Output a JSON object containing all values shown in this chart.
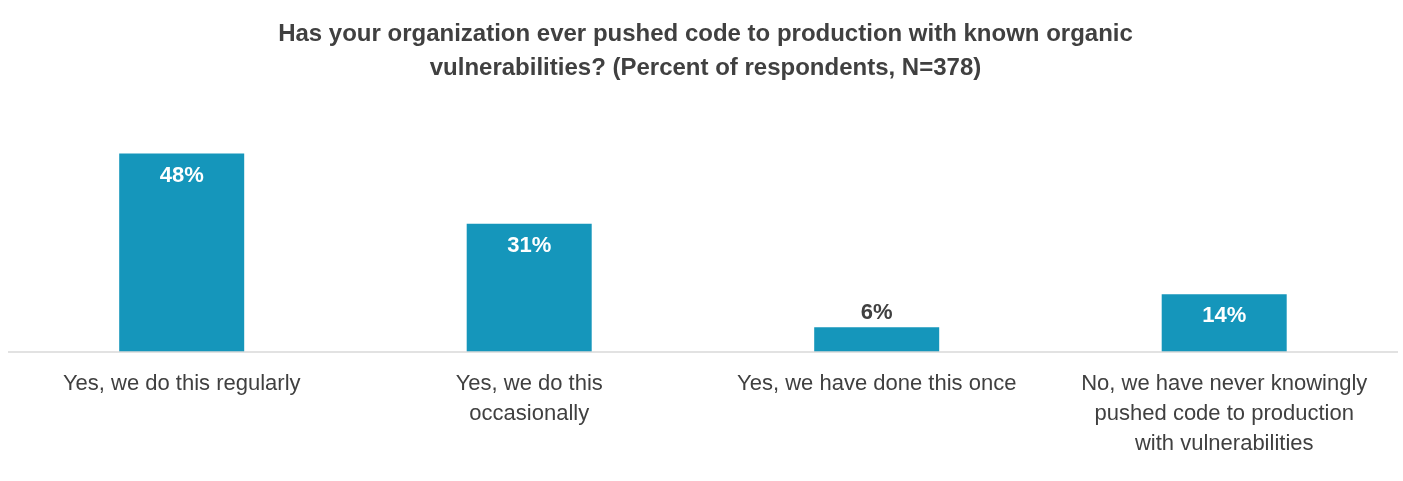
{
  "chart_data": {
    "type": "bar",
    "title": "Has your organization ever pushed code to production with known organic vulnerabilities? (Percent of respondents, N=378)",
    "categories": [
      "Yes, we do this regularly",
      "Yes, we do this occasionally",
      "Yes, we have done this once",
      "No, we have never knowingly pushed code to production with vulnerabilities"
    ],
    "values": [
      48,
      31,
      6,
      14
    ],
    "color": "#1596bb",
    "value_labels": [
      "48%",
      "31%",
      "6%",
      "14%"
    ]
  }
}
